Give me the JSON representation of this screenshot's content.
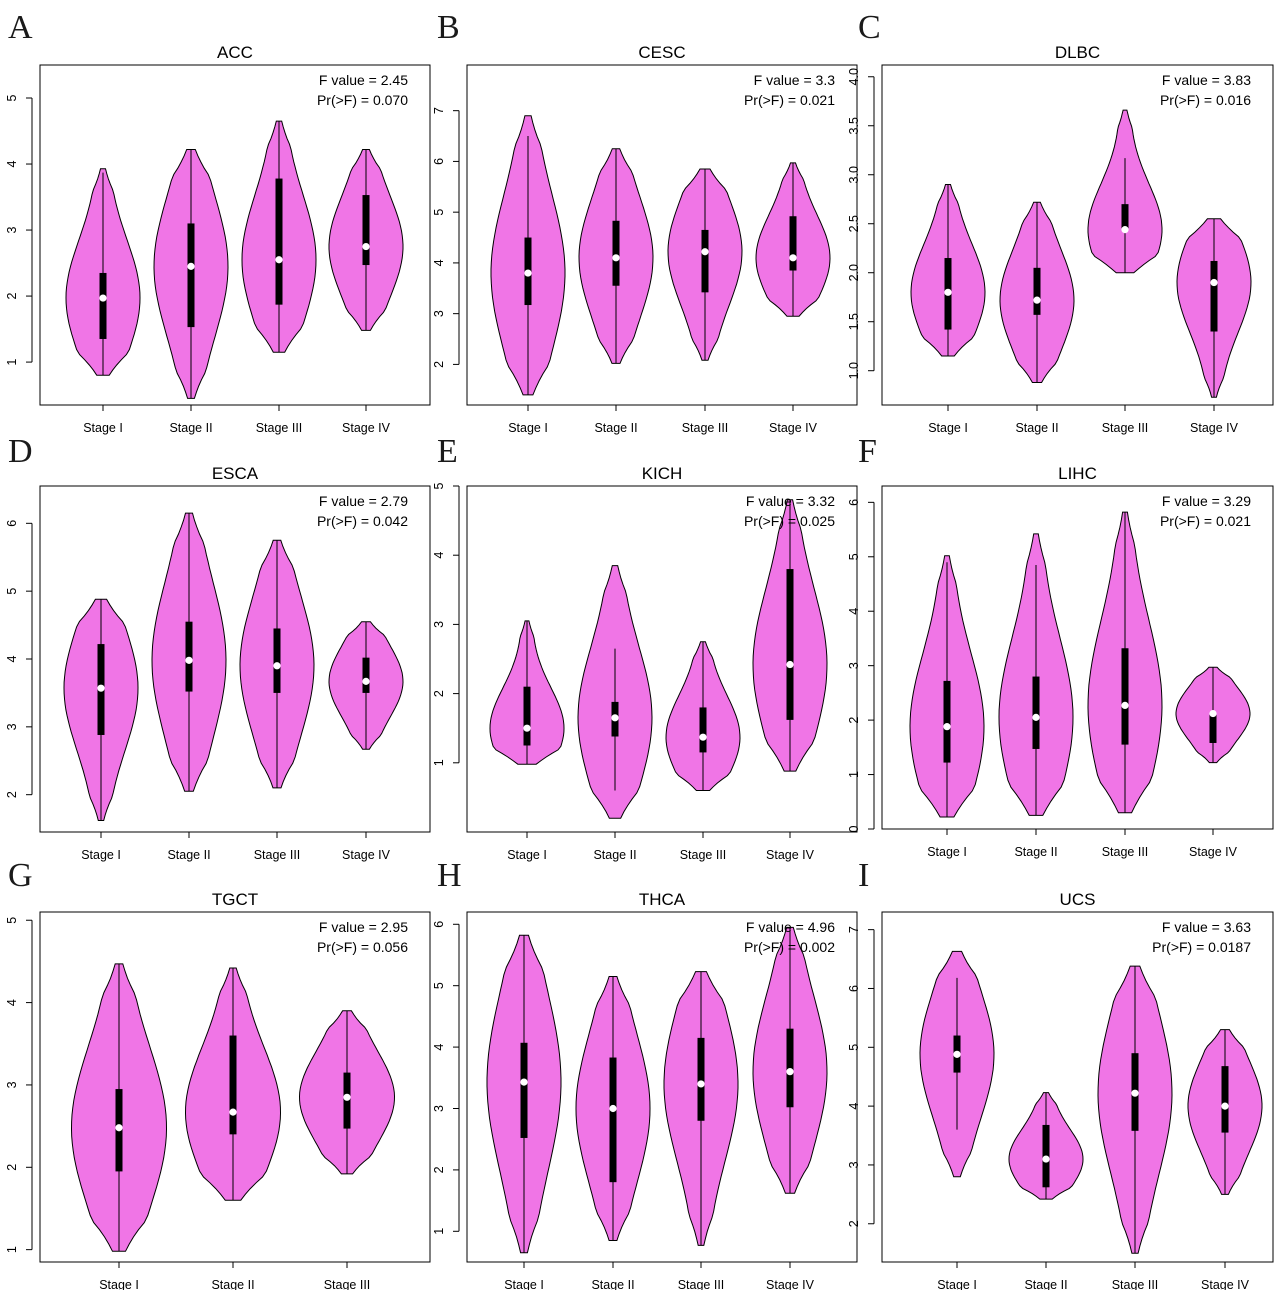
{
  "chart_data": [
    {
      "panel": "A",
      "type": "violin",
      "title": "ACC",
      "stats": {
        "f_value": "F value = 2.45",
        "pr": "Pr(>F) = 0.070"
      },
      "ylim": [
        0.35,
        5.5
      ],
      "yticks": [
        1,
        2,
        3,
        4,
        5
      ],
      "categories": [
        "Stage I",
        "Stage II",
        "Stage III",
        "Stage IV"
      ],
      "distributions": [
        {
          "min": 0.8,
          "max": 3.93,
          "q1": 1.35,
          "median": 1.97,
          "q3": 2.35,
          "whisker_low": 0.8,
          "whisker_high": 3.87
        },
        {
          "min": 0.45,
          "max": 4.22,
          "q1": 1.53,
          "median": 2.45,
          "q3": 3.1,
          "whisker_low": 0.45,
          "whisker_high": 4.22
        },
        {
          "min": 1.15,
          "max": 4.65,
          "q1": 1.87,
          "median": 2.55,
          "q3": 3.78,
          "whisker_low": 1.15,
          "whisker_high": 4.65
        },
        {
          "min": 1.48,
          "max": 4.22,
          "q1": 2.47,
          "median": 2.75,
          "q3": 3.53,
          "whisker_low": 1.48,
          "whisker_high": 4.22
        }
      ]
    },
    {
      "panel": "B",
      "type": "violin",
      "title": "CESC",
      "stats": {
        "f_value": "F value = 3.3",
        "pr": "Pr(>F) = 0.021"
      },
      "ylim": [
        1.2,
        7.9
      ],
      "yticks": [
        2,
        3,
        4,
        5,
        6,
        7
      ],
      "categories": [
        "Stage I",
        "Stage II",
        "Stage III",
        "Stage IV"
      ],
      "distributions": [
        {
          "min": 1.4,
          "max": 6.9,
          "q1": 3.17,
          "median": 3.8,
          "q3": 4.5,
          "whisker_low": 1.4,
          "whisker_high": 6.5
        },
        {
          "min": 2.02,
          "max": 6.25,
          "q1": 3.55,
          "median": 4.1,
          "q3": 4.83,
          "whisker_low": 2.02,
          "whisker_high": 6.25
        },
        {
          "min": 2.08,
          "max": 5.85,
          "q1": 3.42,
          "median": 4.22,
          "q3": 4.65,
          "whisker_low": 2.08,
          "whisker_high": 5.85
        },
        {
          "min": 2.95,
          "max": 5.97,
          "q1": 3.85,
          "median": 4.1,
          "q3": 4.92,
          "whisker_low": 2.95,
          "whisker_high": 5.97
        }
      ]
    },
    {
      "panel": "C",
      "type": "violin",
      "title": "DLBC",
      "stats": {
        "f_value": "F value = 3.83",
        "pr": "Pr(>F) = 0.016"
      },
      "ylim": [
        0.65,
        4.12
      ],
      "yticks": [
        1.0,
        1.5,
        2.0,
        2.5,
        3.0,
        3.5,
        4.0
      ],
      "yticklabels": [
        "1.0",
        "1.5",
        "2.0",
        "2.5",
        "3.0",
        "3.5",
        "4.0"
      ],
      "categories": [
        "Stage I",
        "Stage II",
        "Stage III",
        "Stage IV"
      ],
      "distributions": [
        {
          "min": 1.15,
          "max": 2.9,
          "q1": 1.42,
          "median": 1.8,
          "q3": 2.15,
          "whisker_low": 1.15,
          "whisker_high": 2.9
        },
        {
          "min": 0.88,
          "max": 2.72,
          "q1": 1.57,
          "median": 1.72,
          "q3": 2.05,
          "whisker_low": 0.88,
          "whisker_high": 2.72
        },
        {
          "min": 2.0,
          "max": 3.66,
          "q1": 2.44,
          "median": 2.44,
          "q3": 2.7,
          "whisker_low": 2.0,
          "whisker_high": 3.17
        },
        {
          "min": 0.73,
          "max": 2.55,
          "q1": 1.4,
          "median": 1.9,
          "q3": 2.12,
          "whisker_low": 0.73,
          "whisker_high": 2.55
        }
      ]
    },
    {
      "panel": "D",
      "type": "violin",
      "title": "ESCA",
      "stats": {
        "f_value": "F value = 2.79",
        "pr": "Pr(>F) = 0.042"
      },
      "ylim": [
        1.45,
        6.55
      ],
      "yticks": [
        2,
        3,
        4,
        5,
        6
      ],
      "categories": [
        "Stage I",
        "Stage II",
        "Stage III",
        "Stage IV"
      ],
      "distributions": [
        {
          "min": 1.62,
          "max": 4.88,
          "q1": 2.88,
          "median": 3.57,
          "q3": 4.22,
          "whisker_low": 1.62,
          "whisker_high": 4.88
        },
        {
          "min": 2.05,
          "max": 6.15,
          "q1": 3.52,
          "median": 3.98,
          "q3": 4.55,
          "whisker_low": 2.05,
          "whisker_high": 6.15
        },
        {
          "min": 2.1,
          "max": 5.75,
          "q1": 3.5,
          "median": 3.9,
          "q3": 4.45,
          "whisker_low": 2.1,
          "whisker_high": 5.75
        },
        {
          "min": 2.67,
          "max": 4.55,
          "q1": 3.5,
          "median": 3.67,
          "q3": 4.02,
          "whisker_low": 2.67,
          "whisker_high": 4.55
        }
      ]
    },
    {
      "panel": "E",
      "type": "violin",
      "title": "KICH",
      "stats": {
        "f_value": "F value = 3.32",
        "pr": "Pr(>F) = 0.025"
      },
      "ylim": [
        0.0,
        5.0
      ],
      "yticks": [
        1,
        2,
        3,
        4,
        5
      ],
      "categories": [
        "Stage I",
        "Stage II",
        "Stage III",
        "Stage IV"
      ],
      "distributions": [
        {
          "min": 0.98,
          "max": 3.05,
          "q1": 1.25,
          "median": 1.5,
          "q3": 2.1,
          "whisker_low": 0.98,
          "whisker_high": 3.05
        },
        {
          "min": 0.2,
          "max": 3.85,
          "q1": 1.38,
          "median": 1.65,
          "q3": 1.88,
          "whisker_low": 0.6,
          "whisker_high": 2.65
        },
        {
          "min": 0.6,
          "max": 2.75,
          "q1": 1.15,
          "median": 1.37,
          "q3": 1.8,
          "whisker_low": 0.6,
          "whisker_high": 2.75
        },
        {
          "min": 0.88,
          "max": 4.8,
          "q1": 1.62,
          "median": 2.42,
          "q3": 3.8,
          "whisker_low": 0.88,
          "whisker_high": 4.8
        }
      ]
    },
    {
      "panel": "F",
      "type": "violin",
      "title": "LIHC",
      "stats": {
        "f_value": "F value = 3.29",
        "pr": "Pr(>F) = 0.021"
      },
      "ylim": [
        0.0,
        6.3
      ],
      "yticks": [
        0,
        1,
        2,
        3,
        4,
        5,
        6
      ],
      "categories": [
        "Stage I",
        "Stage II",
        "Stage III",
        "Stage IV"
      ],
      "distributions": [
        {
          "min": 0.22,
          "max": 5.02,
          "q1": 1.22,
          "median": 1.88,
          "q3": 2.72,
          "whisker_low": 0.22,
          "whisker_high": 4.9
        },
        {
          "min": 0.25,
          "max": 5.42,
          "q1": 1.47,
          "median": 2.05,
          "q3": 2.8,
          "whisker_low": 0.25,
          "whisker_high": 4.85
        },
        {
          "min": 0.3,
          "max": 5.82,
          "q1": 1.55,
          "median": 2.27,
          "q3": 3.32,
          "whisker_low": 0.3,
          "whisker_high": 5.82
        },
        {
          "min": 1.22,
          "max": 2.97,
          "q1": 1.58,
          "median": 2.12,
          "q3": 2.12,
          "whisker_low": 1.22,
          "whisker_high": 2.97
        }
      ]
    },
    {
      "panel": "G",
      "type": "violin",
      "title": "TGCT",
      "stats": {
        "f_value": "F value = 2.95",
        "pr": "Pr(>F) = 0.056"
      },
      "ylim": [
        0.85,
        5.1
      ],
      "yticks": [
        1,
        2,
        3,
        4,
        5
      ],
      "categories": [
        "Stage I",
        "Stage II",
        "Stage III"
      ],
      "distributions": [
        {
          "min": 0.98,
          "max": 4.47,
          "q1": 1.95,
          "median": 2.48,
          "q3": 2.95,
          "whisker_low": 0.98,
          "whisker_high": 4.47
        },
        {
          "min": 1.6,
          "max": 4.42,
          "q1": 2.4,
          "median": 2.67,
          "q3": 3.6,
          "whisker_low": 1.6,
          "whisker_high": 4.42
        },
        {
          "min": 1.92,
          "max": 3.9,
          "q1": 2.47,
          "median": 2.85,
          "q3": 3.15,
          "whisker_low": 1.92,
          "whisker_high": 3.9
        }
      ]
    },
    {
      "panel": "H",
      "type": "violin",
      "title": "THCA",
      "stats": {
        "f_value": "F value = 4.96",
        "pr": "Pr(>F) = 0.002"
      },
      "ylim": [
        0.5,
        6.2
      ],
      "yticks": [
        1,
        2,
        3,
        4,
        5,
        6
      ],
      "categories": [
        "Stage I",
        "Stage II",
        "Stage III",
        "Stage IV"
      ],
      "distributions": [
        {
          "min": 0.65,
          "max": 5.82,
          "q1": 2.52,
          "median": 3.43,
          "q3": 4.07,
          "whisker_low": 0.65,
          "whisker_high": 5.82
        },
        {
          "min": 0.85,
          "max": 5.15,
          "q1": 1.8,
          "median": 3.0,
          "q3": 3.83,
          "whisker_low": 0.85,
          "whisker_high": 5.15
        },
        {
          "min": 0.77,
          "max": 5.23,
          "q1": 2.8,
          "median": 3.4,
          "q3": 4.15,
          "whisker_low": 0.77,
          "whisker_high": 5.23
        },
        {
          "min": 1.62,
          "max": 5.95,
          "q1": 3.02,
          "median": 3.6,
          "q3": 4.3,
          "whisker_low": 1.62,
          "whisker_high": 5.95
        }
      ]
    },
    {
      "panel": "I",
      "type": "violin",
      "title": "UCS",
      "stats": {
        "f_value": "F value = 3.63",
        "pr": "Pr(>F) = 0.0187"
      },
      "ylim": [
        1.35,
        7.3
      ],
      "yticks": [
        2,
        3,
        4,
        5,
        6,
        7
      ],
      "categories": [
        "Stage I",
        "Stage II",
        "Stage III",
        "Stage IV"
      ],
      "distributions": [
        {
          "min": 2.8,
          "max": 6.63,
          "q1": 4.57,
          "median": 4.88,
          "q3": 5.2,
          "whisker_low": 3.6,
          "whisker_high": 6.18
        },
        {
          "min": 2.42,
          "max": 4.23,
          "q1": 2.62,
          "median": 3.1,
          "q3": 3.68,
          "whisker_low": 2.42,
          "whisker_high": 4.23
        },
        {
          "min": 1.5,
          "max": 6.38,
          "q1": 3.58,
          "median": 4.22,
          "q3": 4.9,
          "whisker_low": 1.5,
          "whisker_high": 6.38
        },
        {
          "min": 2.5,
          "max": 5.3,
          "q1": 3.55,
          "median": 4.0,
          "q3": 4.68,
          "whisker_low": 2.5,
          "whisker_high": 5.3
        }
      ]
    }
  ],
  "style": {
    "violin_fill": "#f075e6",
    "outline": "#000000",
    "median_marker": "#ffffff"
  }
}
